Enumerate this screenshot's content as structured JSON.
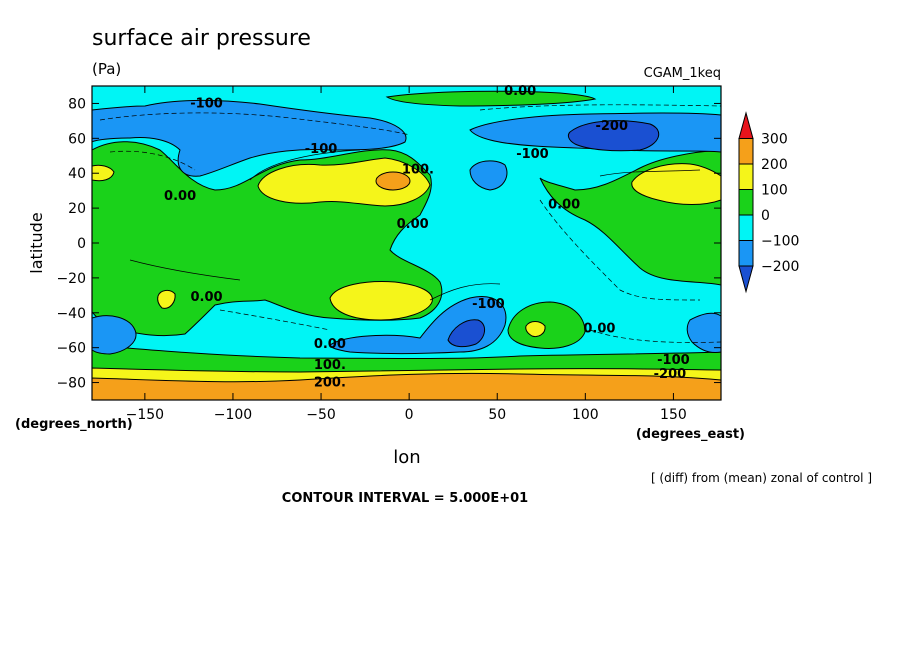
{
  "header": {
    "title": "surface air pressure",
    "units": "(Pa)",
    "dataset": "CGAM_1keq"
  },
  "footer": {
    "note": "[ (diff) from (mean) zonal of control ]",
    "contour_interval": "CONTOUR INTERVAL = 5.000E+01"
  },
  "chart_data": {
    "type": "heatmap",
    "title": "surface air pressure",
    "subtitle": "(Pa)",
    "xlabel": "lon",
    "ylabel": "latitude",
    "x_units": "(degrees_east)",
    "y_units": "(degrees_north)",
    "xlim": [
      -180,
      177
    ],
    "ylim": [
      -90,
      90
    ],
    "x_ticks": [
      -150,
      -100,
      -50,
      0,
      50,
      100,
      150
    ],
    "y_ticks": [
      -80,
      -60,
      -40,
      -20,
      0,
      20,
      40,
      60,
      80
    ],
    "colorbar": {
      "levels": [
        300,
        200,
        100,
        0,
        -100,
        -200
      ],
      "colors": [
        "#e8141c",
        "#f5a01a",
        "#f5f51a",
        "#1ad21a",
        "#00f5f5",
        "#1a96f5",
        "#1a50d2"
      ]
    },
    "contour_labels": [
      {
        "text": "0.00",
        "lon": -45,
        "lat": -58
      },
      {
        "text": "100.",
        "lon": -45,
        "lat": -70
      },
      {
        "text": "200.",
        "lon": -45,
        "lat": -80
      },
      {
        "text": "-100",
        "lon": -115,
        "lat": 80
      },
      {
        "text": "-100",
        "lon": -50,
        "lat": 54
      },
      {
        "text": "-100",
        "lon": 70,
        "lat": 51
      },
      {
        "text": "-100",
        "lon": 45,
        "lat": -35
      },
      {
        "text": "-200",
        "lon": 115,
        "lat": 67
      },
      {
        "text": "0.00",
        "lon": 63,
        "lat": 87
      },
      {
        "text": "0.00",
        "lon": -130,
        "lat": 27
      },
      {
        "text": "0.00",
        "lon": 2,
        "lat": 11
      },
      {
        "text": "0.00",
        "lon": 88,
        "lat": 22
      },
      {
        "text": "0.00",
        "lon": -115,
        "lat": -31
      },
      {
        "text": "0.00",
        "lon": 108,
        "lat": -49
      },
      {
        "text": "100.",
        "lon": 5,
        "lat": 42
      },
      {
        "text": "-100",
        "lon": 150,
        "lat": -67
      },
      {
        "text": "-200",
        "lon": 148,
        "lat": -75
      }
    ]
  }
}
